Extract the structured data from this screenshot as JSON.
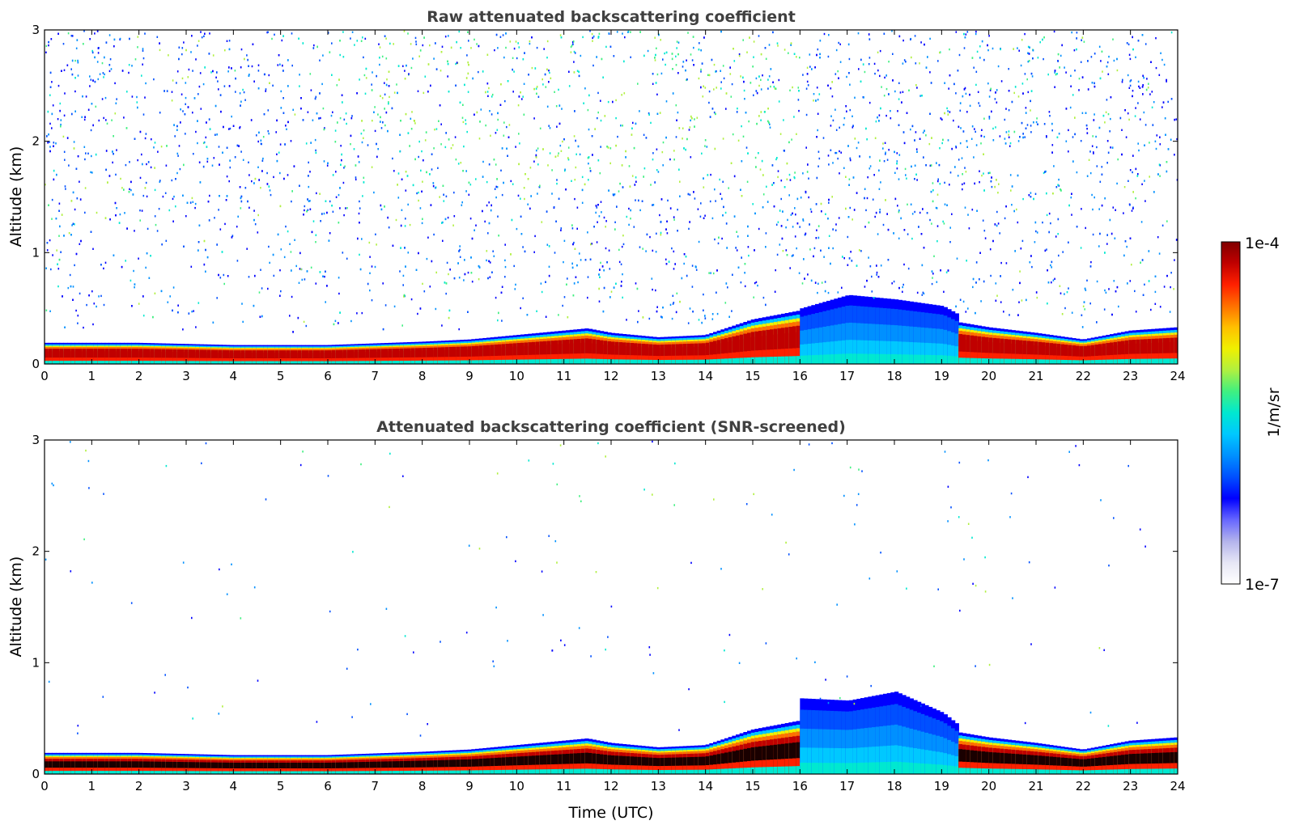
{
  "figure": {
    "xlabel": "Time (UTC)"
  },
  "colorbar": {
    "label": "1/m/sr",
    "max_label": "1e-4",
    "min_label": "1e-7",
    "colormap": [
      "#ffffff",
      "#e6e6f5",
      "#b3b3ec",
      "#6666ff",
      "#0000ff",
      "#0050ff",
      "#0090ff",
      "#00c8ff",
      "#00e8d0",
      "#40f080",
      "#b0f040",
      "#f0f000",
      "#ffc000",
      "#ff7000",
      "#ff2000",
      "#c00000",
      "#800000"
    ]
  },
  "chart_data": [
    {
      "type": "heatmap",
      "title": "Raw attenuated backscattering coefficient",
      "xlabel": "",
      "ylabel": "Altitude (km)",
      "x_range": [
        0,
        24
      ],
      "y_range": [
        0,
        3
      ],
      "x_ticks": [
        "0",
        "1",
        "2",
        "3",
        "4",
        "5",
        "6",
        "7",
        "8",
        "9",
        "10",
        "11",
        "12",
        "13",
        "14",
        "15",
        "16",
        "17",
        "18",
        "19",
        "20",
        "21",
        "22",
        "23",
        "24"
      ],
      "y_ticks": [
        "0",
        "1",
        "2",
        "3"
      ],
      "color_scale": {
        "min": "1e-7",
        "max": "1e-4",
        "scale": "log",
        "units": "1/m/sr"
      },
      "boundary_layer_top_km": {
        "time_utc": [
          0,
          2,
          4,
          6,
          8,
          9,
          10,
          11,
          11.5,
          12,
          13,
          14,
          15,
          16,
          16.1,
          19.2,
          19.3,
          20,
          21,
          22,
          23,
          24
        ],
        "altitude": [
          0.19,
          0.19,
          0.17,
          0.17,
          0.2,
          0.22,
          0.26,
          0.3,
          0.32,
          0.28,
          0.24,
          0.26,
          0.4,
          0.48,
          0.52,
          0.48,
          0.38,
          0.33,
          0.28,
          0.22,
          0.3,
          0.33
        ]
      },
      "cloud_layer_top_km": {
        "time_utc": [
          16,
          17,
          17.5,
          18,
          19,
          19.3
        ],
        "altitude": [
          0.5,
          0.62,
          0.6,
          0.58,
          0.52,
          0.45
        ]
      },
      "noise_region": "high-altitude speckle from 0.5 to 3 km, strongest around 6-16 UTC"
    },
    {
      "type": "heatmap",
      "title": "Attenuated backscattering coefficient (SNR-screened)",
      "xlabel": "Time (UTC)",
      "ylabel": "Altitude (km)",
      "x_range": [
        0,
        24
      ],
      "y_range": [
        0,
        3
      ],
      "x_ticks": [
        "0",
        "1",
        "2",
        "3",
        "4",
        "5",
        "6",
        "7",
        "8",
        "9",
        "10",
        "11",
        "12",
        "13",
        "14",
        "15",
        "16",
        "17",
        "18",
        "19",
        "20",
        "21",
        "22",
        "23",
        "24"
      ],
      "y_ticks": [
        "0",
        "1",
        "2",
        "3"
      ],
      "color_scale": {
        "min": "1e-7",
        "max": "1e-4",
        "scale": "log",
        "units": "1/m/sr"
      },
      "boundary_layer_top_km": {
        "time_utc": [
          0,
          2,
          4,
          6,
          8,
          9,
          10,
          11,
          11.5,
          12,
          13,
          14,
          15,
          16,
          16.1,
          19.2,
          19.3,
          20,
          21,
          22,
          23,
          24
        ],
        "altitude": [
          0.19,
          0.19,
          0.17,
          0.17,
          0.2,
          0.22,
          0.26,
          0.3,
          0.32,
          0.28,
          0.24,
          0.26,
          0.4,
          0.48,
          0.52,
          0.48,
          0.38,
          0.33,
          0.28,
          0.22,
          0.3,
          0.33
        ]
      },
      "cloud_layer_top_km": {
        "time_utc": [
          16,
          17,
          17.5,
          18,
          19,
          19.3
        ],
        "altitude": [
          0.68,
          0.66,
          0.7,
          0.74,
          0.55,
          0.45
        ]
      },
      "noise_region": "sparse isolated points above 0.5 km"
    }
  ]
}
